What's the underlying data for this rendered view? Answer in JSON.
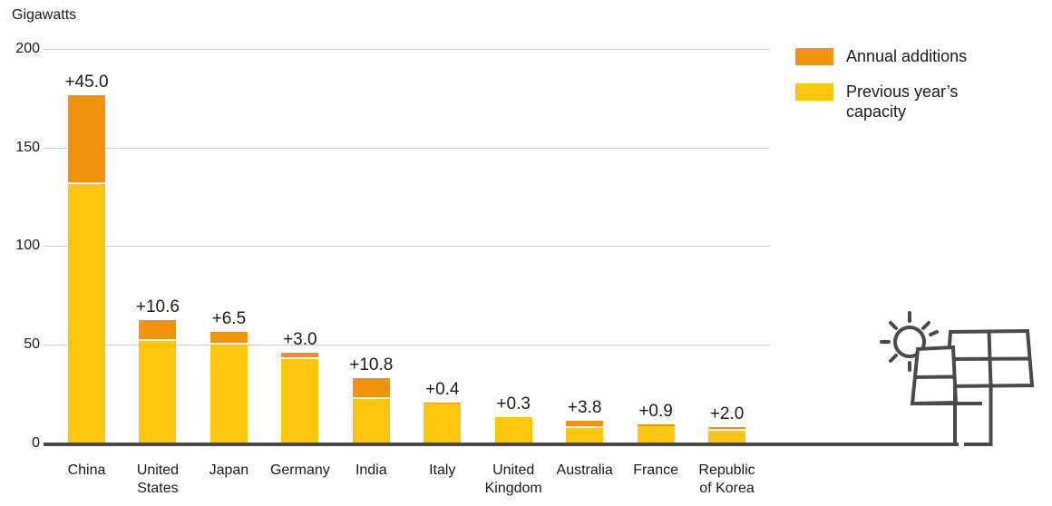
{
  "colors": {
    "additions": "#F0920A",
    "previous": "#FDC60D",
    "gridline": "#CBCBCB",
    "axis": "#4A4A4A",
    "text": "#1A1A1A",
    "illustration_stroke": "#4A4A4A"
  },
  "legend": {
    "items": [
      {
        "label": "Annual additions",
        "swatch": "additions"
      },
      {
        "label": "Previous year’s\ncapacity",
        "swatch": "previous"
      }
    ]
  },
  "chart_data": {
    "type": "bar",
    "stacked": true,
    "title": "",
    "ylabel": "Gigawatts",
    "xlabel": "",
    "ylim": [
      0,
      200
    ],
    "yticks": [
      0,
      50,
      100,
      150,
      200
    ],
    "grid": true,
    "legend_position": "top-right",
    "categories": [
      "China",
      "United States",
      "Japan",
      "Germany",
      "India",
      "Italy",
      "United Kingdom",
      "Australia",
      "France",
      "Republic of Korea"
    ],
    "category_display": [
      "China",
      "United\nStates",
      "Japan",
      "Germany",
      "India",
      "Italy",
      "United\nKingdom",
      "Australia",
      "France",
      "Republic\nof Korea"
    ],
    "series": [
      {
        "name": "Previous year’s capacity",
        "color_key": "previous",
        "values": [
          131.1,
          51.6,
          49.5,
          42.4,
          22.1,
          19.7,
          12.7,
          7.5,
          8.1,
          5.9
        ]
      },
      {
        "name": "Annual additions",
        "color_key": "additions",
        "values": [
          45.0,
          10.6,
          6.5,
          3.0,
          10.8,
          0.4,
          0.3,
          3.8,
          0.9,
          2.0
        ]
      }
    ],
    "totals": [
      176.1,
      62.2,
      56.0,
      45.4,
      32.9,
      20.1,
      13.0,
      11.3,
      9.0,
      7.9
    ],
    "bar_labels": [
      "+45.0",
      "+10.6",
      "+6.5",
      "+3.0",
      "+10.8",
      "+0.4",
      "+0.3",
      "+3.8",
      "+0.9",
      "+2.0"
    ]
  }
}
